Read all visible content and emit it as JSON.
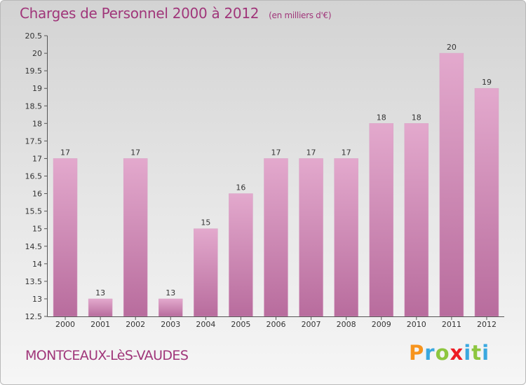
{
  "header": {
    "title": "Charges de Personnel 2000 à 2012",
    "subtitle": "(en milliers d'€)"
  },
  "footer": {
    "commune": "MONTCEAUX-LèS-VAUDES",
    "brand": "Proxiti",
    "brand_colors": [
      "#f7941d",
      "#3aa8df",
      "#8dc63f",
      "#ed1c24",
      "#3aa8df",
      "#8dc63f",
      "#3aa8df"
    ]
  },
  "colors": {
    "bar": "#c77aae",
    "bar_light": "#e3a9cd",
    "text_accent": "#a0367a"
  },
  "chart_data": {
    "type": "bar",
    "title": "Charges de Personnel 2000 à 2012",
    "subtitle": "(en milliers d'€)",
    "categories": [
      "2000",
      "2001",
      "2002",
      "2003",
      "2004",
      "2005",
      "2006",
      "2007",
      "2008",
      "2009",
      "2010",
      "2011",
      "2012"
    ],
    "values": [
      17,
      13,
      17,
      13,
      15,
      16,
      17,
      17,
      17,
      18,
      18,
      20,
      19
    ],
    "value_labels": [
      "17",
      "13",
      "17",
      "13",
      "15",
      "16",
      "17",
      "17",
      "17",
      "18",
      "18",
      "20",
      "19"
    ],
    "ylim": [
      12.5,
      20.5
    ],
    "yticks": [
      12.5,
      13,
      13.5,
      14,
      14.5,
      15,
      15.5,
      16,
      16.5,
      17,
      17.5,
      18,
      18.5,
      19,
      19.5,
      20,
      20.5
    ],
    "ytick_labels": [
      "12.5",
      "13",
      "13.5",
      "14",
      "14.5",
      "15",
      "15.5",
      "16",
      "16.5",
      "17",
      "17.5",
      "18",
      "18.5",
      "19",
      "19.5",
      "20",
      "20.5"
    ],
    "grid": false
  }
}
